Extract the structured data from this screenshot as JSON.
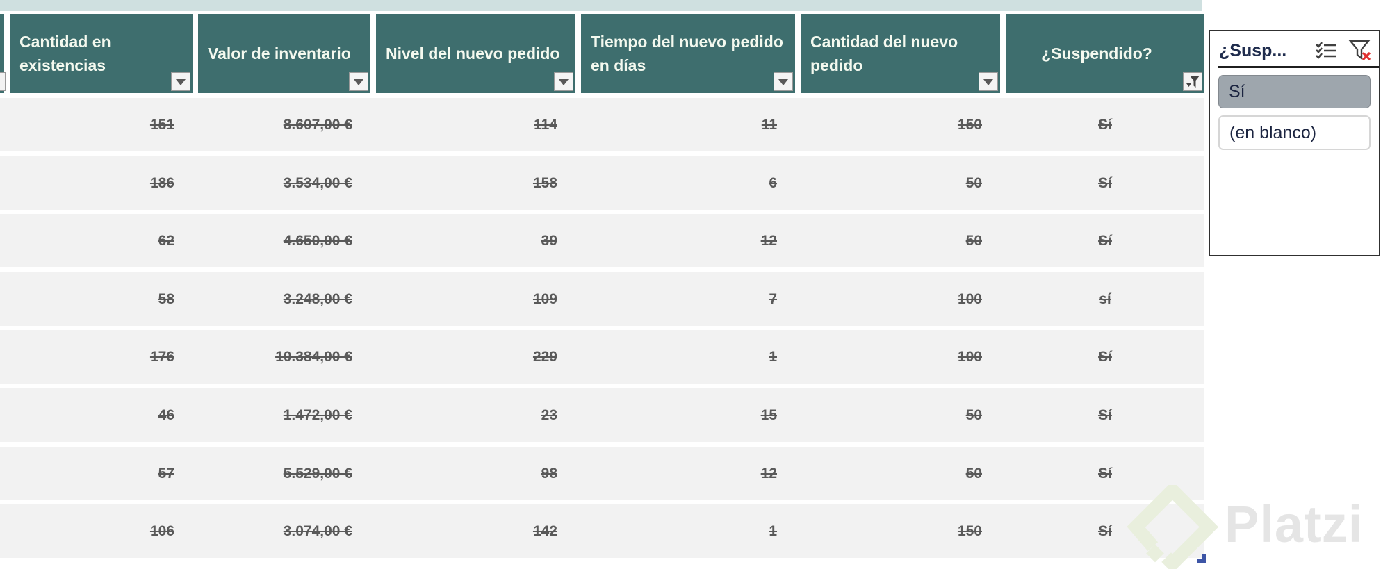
{
  "table": {
    "columns": [
      {
        "label": "Cantidad en existencias",
        "filter": "dropdown-icon"
      },
      {
        "label": "Valor de inventario",
        "filter": "dropdown-icon"
      },
      {
        "label": "Nivel del nuevo pedido",
        "filter": "dropdown-icon"
      },
      {
        "label": "Tiempo del nuevo pedido en días",
        "filter": "dropdown-icon"
      },
      {
        "label": "Cantidad del nuevo pedido",
        "filter": "dropdown-icon"
      },
      {
        "label": "¿Suspendido?",
        "filter": "filtered-funnel-icon"
      }
    ],
    "rows": [
      [
        "151",
        "8.607,00 €",
        "114",
        "11",
        "150",
        "Sí"
      ],
      [
        "186",
        "3.534,00 €",
        "158",
        "6",
        "50",
        "Sí"
      ],
      [
        "62",
        "4.650,00 €",
        "39",
        "12",
        "50",
        "Sí"
      ],
      [
        "58",
        "3.248,00 €",
        "109",
        "7",
        "100",
        "sí"
      ],
      [
        "176",
        "10.384,00 €",
        "229",
        "1",
        "100",
        "Sí"
      ],
      [
        "46",
        "1.472,00 €",
        "23",
        "15",
        "50",
        "Sí"
      ],
      [
        "57",
        "5.529,00 €",
        "98",
        "12",
        "50",
        "Sí"
      ],
      [
        "106",
        "3.074,00 €",
        "142",
        "1",
        "150",
        "Sí"
      ]
    ],
    "values_strikethrough": true
  },
  "slicer": {
    "title": "¿Susp...",
    "icons": [
      "multi-select-icon",
      "clear-filter-icon"
    ],
    "items": [
      {
        "label": "Sí",
        "selected": true
      },
      {
        "label": "(en blanco)",
        "selected": false
      }
    ]
  },
  "watermark": {
    "text": "Platzi"
  },
  "colors": {
    "header_teal": "#3e6e6e",
    "strip_teal": "#cfe0e0",
    "row_gray": "#f2f2f2",
    "value_text_gray": "#595959",
    "slicer_selected_gray": "#9ea6ad",
    "slicer_text_navy": "#1b2440",
    "clear_filter_red": "#e03131",
    "resize_handle_blue": "#3d55a6",
    "watermark_green": "#e9efdd",
    "watermark_text_gray": "#e5e5e5"
  }
}
